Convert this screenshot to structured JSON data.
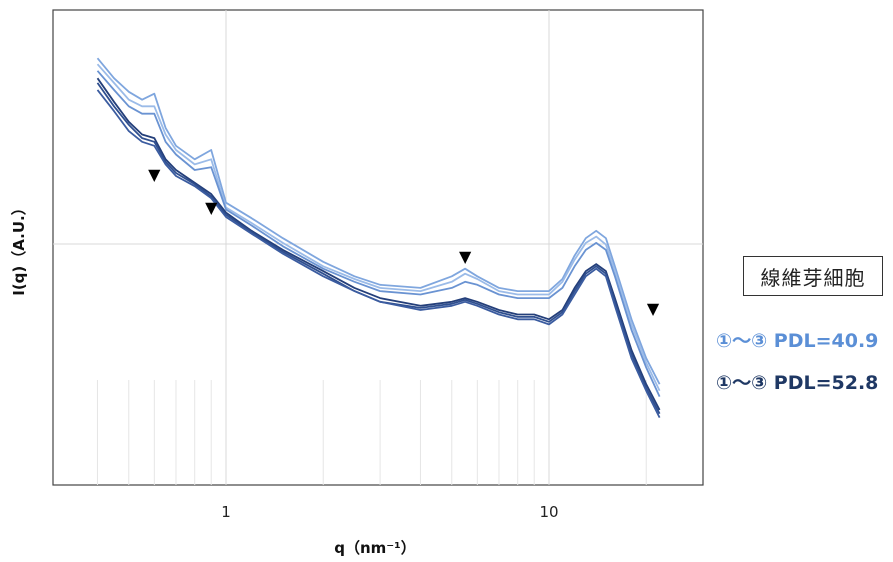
{
  "chart_data": {
    "type": "line",
    "xscale": "log",
    "xlim": [
      0.4,
      25
    ],
    "xticks": [
      "1",
      "10"
    ],
    "xlabel": "q（nm⁻¹）",
    "ylabel": "I(q)（A.U.）",
    "yscale": "log",
    "grid": true,
    "markers": [
      {
        "x": 0.6,
        "symbol": "▼"
      },
      {
        "x": 0.9,
        "symbol": "▼"
      },
      {
        "x": 5.5,
        "symbol": "▼"
      },
      {
        "x": 21,
        "symbol": "▼"
      }
    ],
    "legend_title": "線維芽細胞",
    "series": [
      {
        "name": "①〜③ PDL=40.9",
        "color": "#7fa6de",
        "x": [
          0.4,
          0.45,
          0.5,
          0.55,
          0.6,
          0.65,
          0.7,
          0.8,
          0.9,
          1,
          1.2,
          1.5,
          2,
          2.5,
          3,
          4,
          5,
          5.5,
          6,
          7,
          8,
          9,
          10,
          11,
          12,
          13,
          14,
          15,
          16,
          18,
          20,
          22
        ],
        "y": [
          0.6,
          0.45,
          0.37,
          0.33,
          0.36,
          0.22,
          0.17,
          0.14,
          0.16,
          0.075,
          0.06,
          0.045,
          0.032,
          0.026,
          0.023,
          0.022,
          0.026,
          0.029,
          0.026,
          0.022,
          0.021,
          0.021,
          0.021,
          0.025,
          0.035,
          0.045,
          0.05,
          0.045,
          0.03,
          0.014,
          0.008,
          0.0055
        ]
      },
      {
        "name": "",
        "color": "#9bbbe8",
        "x": [
          0.4,
          0.45,
          0.5,
          0.55,
          0.6,
          0.65,
          0.7,
          0.8,
          0.9,
          1,
          1.2,
          1.5,
          2,
          2.5,
          3,
          4,
          5,
          5.5,
          6,
          7,
          8,
          9,
          10,
          11,
          12,
          13,
          14,
          15,
          16,
          18,
          20,
          22
        ],
        "y": [
          0.55,
          0.42,
          0.33,
          0.3,
          0.3,
          0.2,
          0.16,
          0.13,
          0.14,
          0.07,
          0.056,
          0.042,
          0.03,
          0.025,
          0.022,
          0.021,
          0.024,
          0.027,
          0.025,
          0.021,
          0.02,
          0.02,
          0.02,
          0.024,
          0.033,
          0.042,
          0.046,
          0.041,
          0.028,
          0.013,
          0.0075,
          0.005
        ]
      },
      {
        "name": "",
        "color": "#6a93d2",
        "x": [
          0.4,
          0.45,
          0.5,
          0.55,
          0.6,
          0.65,
          0.7,
          0.8,
          0.9,
          1,
          1.2,
          1.5,
          2,
          2.5,
          3,
          4,
          5,
          5.5,
          6,
          7,
          8,
          9,
          10,
          11,
          12,
          13,
          14,
          15,
          16,
          18,
          20,
          22
        ],
        "y": [
          0.5,
          0.38,
          0.3,
          0.27,
          0.27,
          0.18,
          0.15,
          0.12,
          0.125,
          0.068,
          0.054,
          0.04,
          0.029,
          0.024,
          0.021,
          0.02,
          0.022,
          0.024,
          0.023,
          0.02,
          0.019,
          0.019,
          0.019,
          0.022,
          0.03,
          0.038,
          0.042,
          0.038,
          0.026,
          0.012,
          0.007,
          0.0046
        ]
      },
      {
        "name": "①〜③ PDL=52.8",
        "color": "#243f7a",
        "x": [
          0.4,
          0.45,
          0.5,
          0.55,
          0.6,
          0.65,
          0.7,
          0.8,
          0.9,
          1,
          1.2,
          1.5,
          2,
          2.5,
          3,
          4,
          5,
          5.5,
          6,
          7,
          8,
          9,
          10,
          11,
          12,
          13,
          14,
          15,
          16,
          18,
          20,
          22
        ],
        "y": [
          0.45,
          0.32,
          0.24,
          0.2,
          0.19,
          0.14,
          0.12,
          0.1,
          0.085,
          0.065,
          0.05,
          0.038,
          0.028,
          0.022,
          0.019,
          0.017,
          0.018,
          0.019,
          0.018,
          0.016,
          0.015,
          0.015,
          0.014,
          0.016,
          0.022,
          0.028,
          0.031,
          0.028,
          0.019,
          0.009,
          0.0055,
          0.0038
        ]
      },
      {
        "name": "",
        "color": "#2f4f8f",
        "x": [
          0.4,
          0.45,
          0.5,
          0.55,
          0.6,
          0.65,
          0.7,
          0.8,
          0.9,
          1,
          1.2,
          1.5,
          2,
          2.5,
          3,
          4,
          5,
          5.5,
          6,
          7,
          8,
          9,
          10,
          11,
          12,
          13,
          14,
          15,
          16,
          18,
          20,
          22
        ],
        "y": [
          0.42,
          0.3,
          0.23,
          0.19,
          0.18,
          0.135,
          0.115,
          0.098,
          0.082,
          0.063,
          0.049,
          0.037,
          0.027,
          0.021,
          0.018,
          0.0165,
          0.0175,
          0.0185,
          0.0175,
          0.0155,
          0.0145,
          0.0145,
          0.0135,
          0.0155,
          0.021,
          0.027,
          0.03,
          0.027,
          0.018,
          0.0085,
          0.0052,
          0.0036
        ]
      },
      {
        "name": "",
        "color": "#3b5ca0",
        "x": [
          0.4,
          0.45,
          0.5,
          0.55,
          0.6,
          0.65,
          0.7,
          0.8,
          0.9,
          1,
          1.2,
          1.5,
          2,
          2.5,
          3,
          4,
          5,
          5.5,
          6,
          7,
          8,
          9,
          10,
          11,
          12,
          13,
          14,
          15,
          16,
          18,
          20,
          22
        ],
        "y": [
          0.38,
          0.28,
          0.21,
          0.18,
          0.17,
          0.13,
          0.11,
          0.095,
          0.08,
          0.061,
          0.048,
          0.036,
          0.026,
          0.021,
          0.018,
          0.016,
          0.017,
          0.018,
          0.017,
          0.015,
          0.014,
          0.014,
          0.013,
          0.015,
          0.02,
          0.026,
          0.029,
          0.026,
          0.017,
          0.008,
          0.005,
          0.0034
        ]
      }
    ]
  },
  "colors": {
    "legend_light": "#5b8fd6",
    "legend_dark": "#1f3864"
  }
}
